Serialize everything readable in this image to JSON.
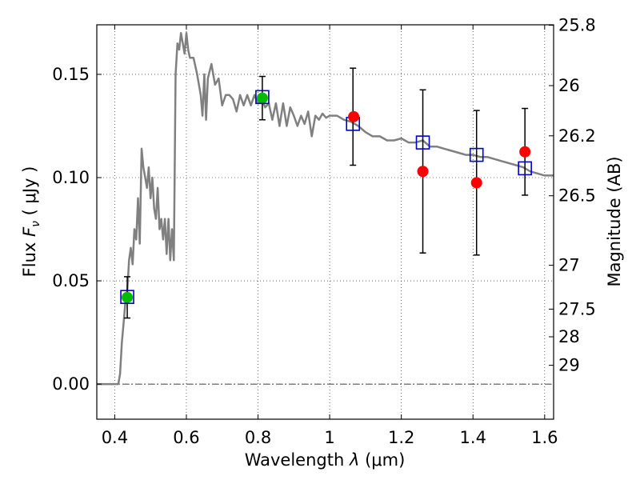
{
  "chart_data": {
    "type": "scatter",
    "x_axis": {
      "label_prefix": "Wavelength",
      "label_symbol": "λ",
      "label_units": "(μm)",
      "range": [
        0.35,
        1.625
      ],
      "ticks": [
        {
          "value": 0.4,
          "label": "0.4"
        },
        {
          "value": 0.6,
          "label": "0.6"
        },
        {
          "value": 0.8,
          "label": "0.8"
        },
        {
          "value": 1.0,
          "label": "1"
        },
        {
          "value": 1.2,
          "label": "1.2"
        },
        {
          "value": 1.4,
          "label": "1.4"
        },
        {
          "value": 1.6,
          "label": "1.6"
        }
      ]
    },
    "y_axis": {
      "label_prefix": "Flux",
      "label_symbol": "F",
      "label_subscript": "ν",
      "label_units": "( μJy )",
      "range": [
        -0.017,
        0.174
      ],
      "ticks": [
        {
          "value": 0.0,
          "label": "0.00"
        },
        {
          "value": 0.05,
          "label": "0.05"
        },
        {
          "value": 0.1,
          "label": "0.10"
        },
        {
          "value": 0.15,
          "label": "0.15"
        }
      ]
    },
    "y2_axis": {
      "label": "Magnitude (AB)",
      "ticks": [
        {
          "mag": 25.8,
          "label": "25.8"
        },
        {
          "mag": 26.0,
          "label": "26"
        },
        {
          "mag": 26.2,
          "label": "26.2"
        },
        {
          "mag": 26.5,
          "label": "26.5"
        },
        {
          "mag": 27.0,
          "label": "27"
        },
        {
          "mag": 27.5,
          "label": "27.5"
        },
        {
          "mag": 28.0,
          "label": "28"
        },
        {
          "mag": 29.0,
          "label": "29"
        }
      ]
    },
    "grid": true,
    "zero_line": true,
    "model_spectrum": {
      "color": "#808080",
      "x": [
        0.35,
        0.41,
        0.415,
        0.42,
        0.425,
        0.43,
        0.435,
        0.44,
        0.445,
        0.45,
        0.455,
        0.46,
        0.465,
        0.47,
        0.475,
        0.48,
        0.485,
        0.49,
        0.495,
        0.5,
        0.505,
        0.51,
        0.515,
        0.52,
        0.525,
        0.53,
        0.535,
        0.54,
        0.545,
        0.55,
        0.555,
        0.56,
        0.565,
        0.57,
        0.575,
        0.58,
        0.585,
        0.59,
        0.595,
        0.6,
        0.605,
        0.61,
        0.62,
        0.63,
        0.64,
        0.645,
        0.65,
        0.655,
        0.66,
        0.67,
        0.68,
        0.69,
        0.7,
        0.71,
        0.72,
        0.73,
        0.74,
        0.75,
        0.76,
        0.77,
        0.78,
        0.79,
        0.8,
        0.81,
        0.82,
        0.83,
        0.84,
        0.85,
        0.86,
        0.87,
        0.88,
        0.89,
        0.9,
        0.91,
        0.92,
        0.93,
        0.94,
        0.95,
        0.96,
        0.97,
        0.98,
        0.99,
        1.0,
        1.02,
        1.04,
        1.06,
        1.08,
        1.1,
        1.12,
        1.14,
        1.16,
        1.18,
        1.2,
        1.22,
        1.24,
        1.26,
        1.28,
        1.3,
        1.32,
        1.34,
        1.36,
        1.38,
        1.4,
        1.42,
        1.44,
        1.46,
        1.48,
        1.5,
        1.52,
        1.54,
        1.56,
        1.58,
        1.6,
        1.625
      ],
      "y": [
        0.0,
        0.0,
        0.005,
        0.02,
        0.03,
        0.04,
        0.045,
        0.06,
        0.066,
        0.058,
        0.075,
        0.07,
        0.09,
        0.068,
        0.114,
        0.105,
        0.1,
        0.095,
        0.105,
        0.09,
        0.1,
        0.085,
        0.08,
        0.095,
        0.075,
        0.08,
        0.07,
        0.08,
        0.063,
        0.08,
        0.06,
        0.075,
        0.06,
        0.15,
        0.165,
        0.162,
        0.17,
        0.165,
        0.16,
        0.17,
        0.162,
        0.158,
        0.158,
        0.15,
        0.14,
        0.13,
        0.15,
        0.128,
        0.148,
        0.155,
        0.145,
        0.148,
        0.135,
        0.14,
        0.14,
        0.138,
        0.132,
        0.14,
        0.135,
        0.14,
        0.135,
        0.14,
        0.136,
        0.138,
        0.134,
        0.136,
        0.128,
        0.136,
        0.125,
        0.136,
        0.125,
        0.134,
        0.13,
        0.125,
        0.13,
        0.126,
        0.132,
        0.12,
        0.13,
        0.128,
        0.131,
        0.129,
        0.13,
        0.13,
        0.128,
        0.127,
        0.125,
        0.122,
        0.12,
        0.12,
        0.118,
        0.118,
        0.119,
        0.117,
        0.117,
        0.118,
        0.115,
        0.115,
        0.114,
        0.113,
        0.112,
        0.111,
        0.111,
        0.11,
        0.11,
        0.109,
        0.108,
        0.107,
        0.106,
        0.105,
        0.103,
        0.102,
        0.101,
        0.101
      ]
    },
    "model_bands": {
      "color": "#0000cc",
      "points": [
        {
          "x": 0.435,
          "y": 0.0422
        },
        {
          "x": 0.812,
          "y": 0.139
        },
        {
          "x": 1.065,
          "y": 0.126
        },
        {
          "x": 1.26,
          "y": 0.117
        },
        {
          "x": 1.41,
          "y": 0.111
        },
        {
          "x": 1.545,
          "y": 0.1045
        }
      ]
    },
    "detections": {
      "color": "#00bb00",
      "points": [
        {
          "x": 0.435,
          "y": 0.042,
          "yerr": 0.01
        },
        {
          "x": 0.812,
          "y": 0.1385,
          "yerr": 0.0105
        }
      ]
    },
    "measurements": {
      "color": "#ff0000",
      "points": [
        {
          "x": 1.067,
          "y": 0.1295
        },
        {
          "x": 1.26,
          "y": 0.103
        },
        {
          "x": 1.41,
          "y": 0.0975
        },
        {
          "x": 1.545,
          "y": 0.1125
        }
      ]
    },
    "error_bars": [
      {
        "x": 1.065,
        "y": 0.1295,
        "yerr": 0.0235
      },
      {
        "x": 1.26,
        "y": 0.103,
        "yerr": 0.0395
      },
      {
        "x": 1.41,
        "y": 0.0975,
        "yerr": 0.035
      },
      {
        "x": 1.545,
        "y": 0.1125,
        "yerr": 0.021
      }
    ]
  }
}
